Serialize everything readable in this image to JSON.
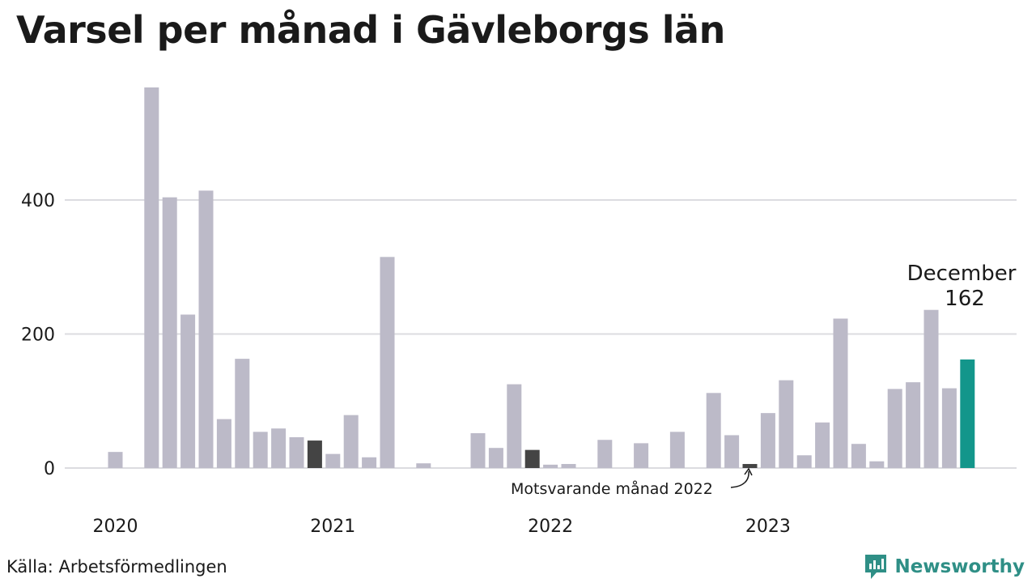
{
  "title": "Varsel per månad i Gävleborgs län",
  "source": "Källa: Arbetsförmedlingen",
  "brand": "Newsworthy",
  "colors": {
    "bar": "#bcbac8",
    "highlight": "#444444",
    "current": "#13968b",
    "grid": "#dcdce0",
    "brand": "#2f8f86"
  },
  "chart_data": {
    "type": "bar",
    "title": "Varsel per månad i Gävleborgs län",
    "xlabel": "",
    "ylabel": "",
    "ylim": [
      0,
      570
    ],
    "yticks": [
      0,
      200,
      400
    ],
    "xtick_labels": [
      {
        "label": "2020",
        "index": 0
      },
      {
        "label": "2021",
        "index": 12
      },
      {
        "label": "2022",
        "index": 24
      },
      {
        "label": "2023",
        "index": 36
      }
    ],
    "categories": [
      "2020-01",
      "2020-02",
      "2020-03",
      "2020-04",
      "2020-05",
      "2020-06",
      "2020-07",
      "2020-08",
      "2020-09",
      "2020-10",
      "2020-11",
      "2020-12",
      "2021-01",
      "2021-02",
      "2021-03",
      "2021-04",
      "2021-05",
      "2021-06",
      "2021-07",
      "2021-08",
      "2021-09",
      "2021-10",
      "2021-11",
      "2021-12",
      "2022-01",
      "2022-02",
      "2022-03",
      "2022-04",
      "2022-05",
      "2022-06",
      "2022-07",
      "2022-08",
      "2022-09",
      "2022-10",
      "2022-11",
      "2022-12",
      "2023-01",
      "2023-02",
      "2023-03",
      "2023-04",
      "2023-05",
      "2023-06",
      "2023-07",
      "2023-08",
      "2023-09",
      "2023-10",
      "2023-11",
      "2023-12"
    ],
    "values": [
      24,
      0,
      568,
      404,
      229,
      414,
      73,
      163,
      54,
      59,
      46,
      41,
      21,
      79,
      16,
      315,
      0,
      7,
      0,
      0,
      52,
      30,
      125,
      27,
      5,
      6,
      0,
      42,
      0,
      37,
      0,
      54,
      0,
      112,
      49,
      6,
      82,
      131,
      19,
      68,
      223,
      36,
      10,
      118,
      128,
      236,
      119,
      162
    ],
    "highlighted": [
      11,
      23,
      35
    ],
    "current_index": 47,
    "annotations": {
      "corresponding": "Motsvarande månad 2022",
      "current_month": "December",
      "current_value": "162"
    },
    "grid": true
  }
}
